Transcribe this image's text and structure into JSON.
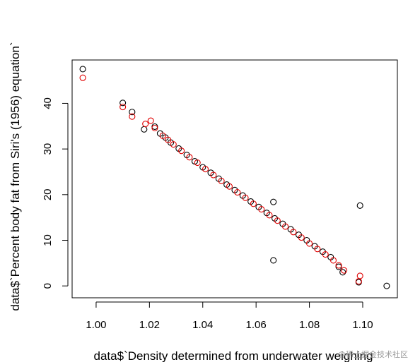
{
  "chart_data": {
    "type": "scatter",
    "xlabel": "data$`Density determined from underwater weighing",
    "ylabel": "data$`Percent body fat from Siri's (1956) equation`",
    "xlim": [
      0.991,
      1.113
    ],
    "ylim": [
      -2.6,
      49.5
    ],
    "x_ticks": [
      1.0,
      1.02,
      1.04,
      1.06,
      1.08,
      1.1
    ],
    "x_tick_labels": [
      "1.00",
      "1.02",
      "1.04",
      "1.06",
      "1.08",
      "1.10"
    ],
    "y_ticks": [
      0,
      10,
      20,
      30,
      40
    ],
    "y_tick_labels": [
      "0",
      "10",
      "20",
      "30",
      "40"
    ],
    "grid": false,
    "series": [
      {
        "color": "#000000",
        "marker": "open-circle",
        "points": [
          [
            0.995,
            47.5
          ],
          [
            1.01,
            40.1
          ],
          [
            1.0135,
            38.1
          ],
          [
            1.018,
            34.3
          ],
          [
            1.022,
            34.9
          ],
          [
            1.024,
            33.4
          ],
          [
            1.026,
            32.5
          ],
          [
            1.028,
            31.4
          ],
          [
            1.031,
            30.1
          ],
          [
            1.034,
            28.7
          ],
          [
            1.037,
            27.3
          ],
          [
            1.04,
            26.0
          ],
          [
            1.043,
            24.8
          ],
          [
            1.046,
            23.5
          ],
          [
            1.049,
            22.2
          ],
          [
            1.052,
            21.0
          ],
          [
            1.055,
            19.8
          ],
          [
            1.058,
            18.5
          ],
          [
            1.061,
            17.3
          ],
          [
            1.064,
            16.0
          ],
          [
            1.067,
            14.8
          ],
          [
            1.07,
            13.6
          ],
          [
            1.073,
            12.4
          ],
          [
            1.076,
            11.2
          ],
          [
            1.079,
            10.0
          ],
          [
            1.082,
            8.7
          ],
          [
            1.085,
            7.5
          ],
          [
            1.088,
            6.3
          ],
          [
            1.091,
            4.2
          ],
          [
            1.0925,
            3.0
          ],
          [
            1.0665,
            18.4
          ],
          [
            1.0665,
            5.6
          ],
          [
            1.0985,
            0.8
          ],
          [
            1.099,
            17.6
          ],
          [
            1.109,
            0.0
          ]
        ]
      },
      {
        "color": "#e00000",
        "marker": "open-circle",
        "points": [
          [
            0.995,
            45.6
          ],
          [
            1.01,
            39.2
          ],
          [
            1.0135,
            37.1
          ],
          [
            1.0185,
            35.5
          ],
          [
            1.0205,
            36.2
          ],
          [
            1.022,
            34.6
          ],
          [
            1.025,
            32.9
          ],
          [
            1.027,
            32.0
          ],
          [
            1.029,
            31.0
          ],
          [
            1.032,
            29.6
          ],
          [
            1.035,
            28.2
          ],
          [
            1.038,
            27.0
          ],
          [
            1.041,
            25.6
          ],
          [
            1.044,
            24.3
          ],
          [
            1.047,
            23.0
          ],
          [
            1.05,
            21.8
          ],
          [
            1.053,
            20.5
          ],
          [
            1.056,
            19.3
          ],
          [
            1.059,
            18.0
          ],
          [
            1.062,
            16.8
          ],
          [
            1.065,
            15.5
          ],
          [
            1.068,
            14.3
          ],
          [
            1.071,
            13.0
          ],
          [
            1.074,
            11.8
          ],
          [
            1.077,
            10.6
          ],
          [
            1.08,
            9.3
          ],
          [
            1.083,
            8.1
          ],
          [
            1.086,
            6.9
          ],
          [
            1.089,
            5.6
          ],
          [
            1.091,
            4.5
          ],
          [
            1.093,
            3.4
          ],
          [
            1.0985,
            1.0
          ],
          [
            1.099,
            2.2
          ]
        ]
      }
    ]
  },
  "watermark": "@稀土掘金技术社区"
}
